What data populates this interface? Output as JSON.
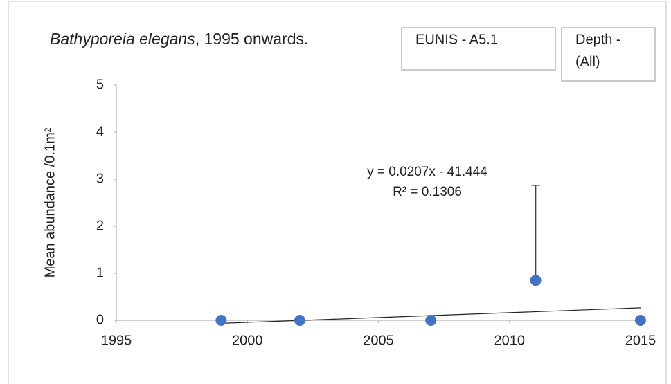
{
  "chart_data": {
    "type": "scatter",
    "title": {
      "species": "Bathyporeia elegans",
      "suffix": ", 1995 onwards."
    },
    "filters": [
      {
        "lines": [
          "EUNIS - A5.1"
        ]
      },
      {
        "lines": [
          "Depth -",
          "(All)"
        ]
      }
    ],
    "y_label": "Mean abundance /0.1m²",
    "x": [
      1999,
      2002,
      2007,
      2011,
      2015
    ],
    "series": [
      {
        "name": "Mean abundance",
        "color": "#4472c4",
        "values": [
          0,
          0,
          0,
          0.85,
          0
        ],
        "errors": [
          null,
          null,
          null,
          2.02,
          null
        ]
      }
    ],
    "trendline": {
      "slope": 0.0207,
      "intercept": -41.444,
      "x_range": [
        1999,
        2015
      ],
      "color": "#222222",
      "labels": [
        "y = 0.0207x - 41.444",
        "R² = 0.1306"
      ]
    },
    "xlim": [
      1995,
      2015
    ],
    "xticks": [
      1995,
      2000,
      2005,
      2010,
      2015
    ],
    "ylim": [
      0,
      5
    ],
    "yticks": [
      0,
      1,
      2,
      3,
      4,
      5
    ],
    "grid": false
  }
}
